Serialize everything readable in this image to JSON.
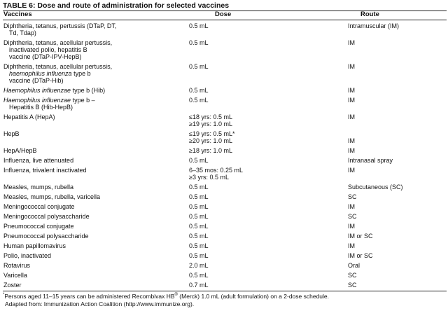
{
  "title": "TABLE 6: Dose and route of administration for selected vaccines",
  "headers": {
    "vaccines": "Vaccines",
    "dose": "Dose",
    "route": "Route"
  },
  "rows": [
    {
      "vaccine": [
        [
          {
            "t": "Diphtheria, tetanus, pertussis (DTaP, DT,"
          }
        ],
        [
          {
            "t": "Td, Tdap)"
          }
        ]
      ],
      "dose": [
        "0.5 mL"
      ],
      "route": [
        "Intramuscular (IM)"
      ]
    },
    {
      "vaccine": [
        [
          {
            "t": "Diphtheria, tetanus, acellular pertussis,"
          }
        ],
        [
          {
            "t": "inactivated polio, hepatitis B"
          }
        ],
        [
          {
            "t": "vaccine (DTaP-IPV-HepB)"
          }
        ]
      ],
      "dose": [
        "0.5 mL"
      ],
      "route": [
        "IM"
      ]
    },
    {
      "vaccine": [
        [
          {
            "t": "Diphtheria, tetanus, acellular pertussis,"
          }
        ],
        [
          {
            "t": "haemophilus influenza",
            "i": true
          },
          {
            "t": " type b"
          }
        ],
        [
          {
            "t": "vaccine (DTaP-Hib)"
          }
        ]
      ],
      "dose": [
        "0.5 mL"
      ],
      "route": [
        "IM"
      ]
    },
    {
      "vaccine": [
        [
          {
            "t": "Haemophilus influenzae",
            "i": true
          },
          {
            "t": " type b (Hib)"
          }
        ]
      ],
      "dose": [
        "0.5 mL"
      ],
      "route": [
        "IM"
      ]
    },
    {
      "vaccine": [
        [
          {
            "t": "Haemophilus influenzae",
            "i": true
          },
          {
            "t": " type b –"
          }
        ],
        [
          {
            "t": "Hepatitis B (Hib-HepB)"
          }
        ]
      ],
      "dose": [
        "0.5 mL"
      ],
      "route": [
        "IM"
      ]
    },
    {
      "vaccine": [
        [
          {
            "t": "Hepatitis A (HepA)"
          }
        ]
      ],
      "dose": [
        "≤18 yrs: 0.5 mL",
        "≥19 yrs: 1.0 mL"
      ],
      "route": [
        "IM"
      ]
    },
    {
      "vaccine": [
        [
          {
            "t": "HepB"
          }
        ]
      ],
      "dose": [
        "≤19 yrs: 0.5 mL*",
        "≥20 yrs: 1.0 mL"
      ],
      "route": [
        "",
        "IM"
      ]
    },
    {
      "vaccine": [
        [
          {
            "t": "HepA/HepB"
          }
        ]
      ],
      "dose": [
        "≥18 yrs: 1.0 mL"
      ],
      "route": [
        "IM"
      ]
    },
    {
      "vaccine": [
        [
          {
            "t": "Influenza, live attenuated"
          }
        ]
      ],
      "dose": [
        "0.5 mL"
      ],
      "route": [
        "Intranasal spray"
      ]
    },
    {
      "vaccine": [
        [
          {
            "t": "Influenza, trivalent inactivated"
          }
        ]
      ],
      "dose": [
        "6–35 mos: 0.25 mL",
        "≥3 yrs: 0.5 mL"
      ],
      "route": [
        "IM"
      ]
    },
    {
      "vaccine": [
        [
          {
            "t": "Measles, mumps, rubella"
          }
        ]
      ],
      "dose": [
        "0.5 mL"
      ],
      "route": [
        "Subcutaneous (SC)"
      ]
    },
    {
      "vaccine": [
        [
          {
            "t": "Measles, mumps, rubella, varicella"
          }
        ]
      ],
      "dose": [
        "0.5 mL"
      ],
      "route": [
        "SC"
      ]
    },
    {
      "vaccine": [
        [
          {
            "t": "Meningococcal conjugate"
          }
        ]
      ],
      "dose": [
        "0.5 mL"
      ],
      "route": [
        "IM"
      ]
    },
    {
      "vaccine": [
        [
          {
            "t": "Meningococcal polysaccharide"
          }
        ]
      ],
      "dose": [
        "0.5 mL"
      ],
      "route": [
        "SC"
      ]
    },
    {
      "vaccine": [
        [
          {
            "t": "Pneumococcal conjugate"
          }
        ]
      ],
      "dose": [
        "0.5 mL"
      ],
      "route": [
        "IM"
      ]
    },
    {
      "vaccine": [
        [
          {
            "t": "Pneumococcal polysaccharide"
          }
        ]
      ],
      "dose": [
        "0.5 mL"
      ],
      "route": [
        "IM or SC"
      ]
    },
    {
      "vaccine": [
        [
          {
            "t": "Human papillomavirus"
          }
        ]
      ],
      "dose": [
        "0.5 mL"
      ],
      "route": [
        "IM"
      ]
    },
    {
      "vaccine": [
        [
          {
            "t": "Polio, inactivated"
          }
        ]
      ],
      "dose": [
        "0.5 mL"
      ],
      "route": [
        "IM or SC"
      ]
    },
    {
      "vaccine": [
        [
          {
            "t": "Rotavirus"
          }
        ]
      ],
      "dose": [
        "2.0 mL"
      ],
      "route": [
        "Oral"
      ]
    },
    {
      "vaccine": [
        [
          {
            "t": "Varicella"
          }
        ]
      ],
      "dose": [
        "0.5 mL"
      ],
      "route": [
        "SC"
      ]
    },
    {
      "vaccine": [
        [
          {
            "t": "Zoster"
          }
        ]
      ],
      "dose": [
        "0.7 mL"
      ],
      "route": [
        "SC"
      ]
    }
  ],
  "footnote": {
    "mark": "*",
    "text_a": "Persons aged 11–15 years can be administered Recombivax HB",
    "reg": "®",
    "text_b": " (Merck) 1.0 mL (adult formulation) on a 2-dose schedule.",
    "source": "Adapted from: Immunization Action Coalition (http://www.immunize.org)."
  }
}
